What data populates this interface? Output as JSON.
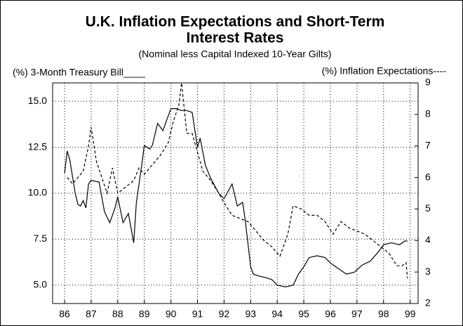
{
  "chart_data": {
    "type": "line",
    "title": [
      "U.K. Inflation Expectations and Short-Term",
      "Interest Rates"
    ],
    "subtitle": "(Nominal less Capital Indexed 10-Year Gilts)",
    "y_label": "(%) 3-Month Treasury Bill____",
    "y2_label": "(%) Inflation Expectations----",
    "xlim": [
      85.55,
      99.3
    ],
    "xticks": [
      86,
      87,
      88,
      89,
      90,
      91,
      92,
      93,
      94,
      95,
      96,
      97,
      98,
      99
    ],
    "ylim": [
      4,
      16
    ],
    "yticks": [
      {
        "value": 5,
        "label": "5.0"
      },
      {
        "value": 7.5,
        "label": "7.5"
      },
      {
        "value": 10,
        "label": "10.0"
      },
      {
        "value": 12.5,
        "label": "12.5"
      },
      {
        "value": 15,
        "label": "15.0"
      }
    ],
    "y2lim": [
      2,
      9
    ],
    "y2ticks": [
      2,
      3,
      4,
      5,
      6,
      7,
      8,
      9
    ],
    "grid": true,
    "series": [
      {
        "name": "3-Month Treasury Bill",
        "color": "#000000",
        "dash": "none",
        "x": [
          86.0,
          86.1,
          86.2,
          86.4,
          86.5,
          86.6,
          86.7,
          86.8,
          86.9,
          87.0,
          87.3,
          87.5,
          87.7,
          87.9,
          88.0,
          88.2,
          88.4,
          88.6,
          88.7,
          88.9,
          89.0,
          89.2,
          89.3,
          89.5,
          89.7,
          90.0,
          90.2,
          90.4,
          90.6,
          90.8,
          91.0,
          91.1,
          91.3,
          91.5,
          91.8,
          92.0,
          92.3,
          92.5,
          92.7,
          92.8,
          93.0,
          93.1,
          93.3,
          93.6,
          93.8,
          94.0,
          94.3,
          94.6,
          94.8,
          95.0,
          95.2,
          95.5,
          95.8,
          96.0,
          96.3,
          96.6,
          96.9,
          97.2,
          97.5,
          97.8,
          98.0,
          98.3,
          98.6,
          98.8,
          98.9
        ],
        "values": [
          11.1,
          12.3,
          11.8,
          10.0,
          9.4,
          9.3,
          9.6,
          9.2,
          10.5,
          10.7,
          10.6,
          9.0,
          8.4,
          9.2,
          9.8,
          8.4,
          8.9,
          7.3,
          9.5,
          11.5,
          12.6,
          12.4,
          12.6,
          13.8,
          13.4,
          14.6,
          14.6,
          14.5,
          14.5,
          14.4,
          12.5,
          13.0,
          11.5,
          10.8,
          10.0,
          9.7,
          10.5,
          9.3,
          9.5,
          8.5,
          6.0,
          5.6,
          5.5,
          5.4,
          5.3,
          5.0,
          4.9,
          5.0,
          5.6,
          6.0,
          6.5,
          6.6,
          6.5,
          6.2,
          5.9,
          5.6,
          5.7,
          6.1,
          6.3,
          6.8,
          7.2,
          7.3,
          7.2,
          7.4,
          7.4
        ]
      },
      {
        "name": "Inflation Expectations",
        "color": "#000000",
        "dash": "4 3",
        "axis": "y2",
        "x": [
          86.1,
          86.3,
          86.5,
          86.7,
          86.9,
          87.0,
          87.2,
          87.4,
          87.6,
          87.8,
          88.0,
          88.3,
          88.6,
          88.8,
          89.0,
          89.3,
          89.6,
          89.9,
          90.1,
          90.3,
          90.4,
          90.6,
          90.8,
          91.0,
          91.2,
          91.5,
          91.8,
          92.0,
          92.3,
          92.6,
          92.9,
          93.2,
          93.5,
          93.8,
          94.1,
          94.4,
          94.6,
          94.9,
          95.2,
          95.5,
          95.8,
          96.1,
          96.4,
          96.7,
          97.0,
          97.3,
          97.6,
          97.9,
          98.2,
          98.5,
          98.7,
          98.85,
          98.9
        ],
        "values": [
          6.0,
          5.8,
          6.0,
          6.2,
          7.0,
          7.6,
          6.5,
          6.0,
          5.5,
          6.3,
          5.5,
          5.7,
          5.9,
          6.3,
          6.1,
          6.4,
          6.7,
          7.1,
          7.8,
          8.3,
          9.0,
          7.4,
          7.4,
          6.8,
          6.2,
          5.9,
          5.5,
          5.2,
          4.8,
          4.7,
          4.6,
          4.3,
          4.0,
          3.8,
          3.5,
          4.2,
          5.1,
          5.0,
          4.8,
          4.8,
          4.6,
          4.2,
          4.6,
          4.4,
          4.3,
          4.2,
          4.0,
          3.8,
          3.6,
          3.2,
          3.2,
          3.3,
          2.8
        ]
      }
    ]
  }
}
